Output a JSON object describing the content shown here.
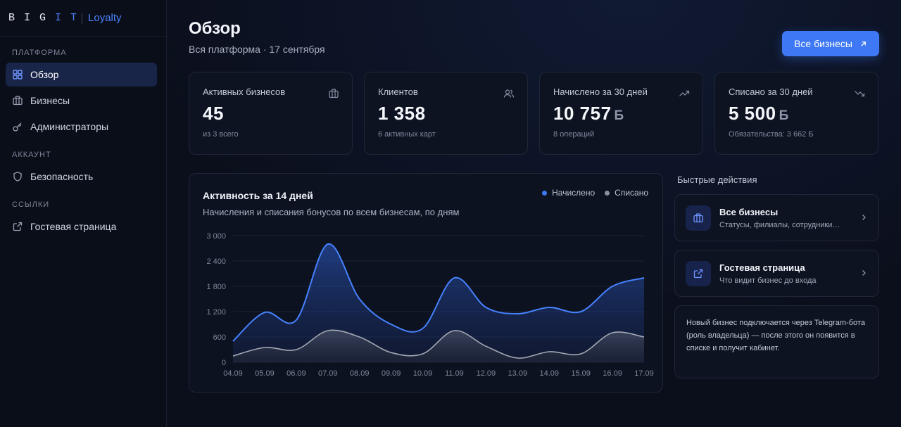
{
  "sidebar": {
    "logo": {
      "mark_left": "BIG",
      "mark_right": "IT",
      "product": "Loyalty"
    },
    "sections": [
      {
        "title": "ПЛАТФОРМА",
        "items": [
          {
            "label": "Обзор",
            "icon": "grid-icon",
            "active": true
          },
          {
            "label": "Бизнесы",
            "icon": "briefcase-icon",
            "active": false
          },
          {
            "label": "Администраторы",
            "icon": "key-icon",
            "active": false
          }
        ]
      },
      {
        "title": "АККАУНТ",
        "items": [
          {
            "label": "Безопасность",
            "icon": "shield-icon",
            "active": false
          }
        ]
      },
      {
        "title": "ССЫЛКИ",
        "items": [
          {
            "label": "Гостевая страница",
            "icon": "external-link-icon",
            "active": false
          }
        ]
      }
    ]
  },
  "header": {
    "title": "Обзор",
    "subtitle": "Вся платформа · 17 сентября",
    "button_label": "Все бизнесы"
  },
  "stats": [
    {
      "label": "Активных бизнесов",
      "value": "45",
      "unit": "",
      "note": "из 3 всего",
      "icon": "briefcase-icon"
    },
    {
      "label": "Клиентов",
      "value": "1 358",
      "unit": "",
      "note": "6 активных карт",
      "icon": "users-icon"
    },
    {
      "label": "Начислено за 30 дней",
      "value": "10 757",
      "unit": "Б",
      "note": "8 операций",
      "icon": "trend-up-icon"
    },
    {
      "label": "Списано за 30 дней",
      "value": "5 500",
      "unit": "Б",
      "note": "Обязательства: 3 662 Б",
      "icon": "trend-down-icon"
    }
  ],
  "chart_card": {
    "title": "Активность за 14 дней",
    "subtitle": "Начисления и списания бонусов по всем бизнесам, по дням"
  },
  "chart_data": {
    "type": "area",
    "x": [
      "04.09",
      "05.09",
      "06.09",
      "07.09",
      "08.09",
      "09.09",
      "10.09",
      "11.09",
      "12.09",
      "13.09",
      "14.09",
      "15.09",
      "16.09",
      "17.09"
    ],
    "series": [
      {
        "name": "Начислено",
        "color": "#3d78f5",
        "values": [
          500,
          1180,
          1000,
          2800,
          1500,
          900,
          800,
          2000,
          1300,
          1150,
          1300,
          1200,
          1800,
          2000
        ]
      },
      {
        "name": "Списано",
        "color": "#8a909c",
        "values": [
          150,
          350,
          300,
          750,
          600,
          230,
          200,
          750,
          380,
          100,
          250,
          200,
          700,
          600
        ]
      }
    ],
    "yticks": [
      0,
      600,
      1200,
      1800,
      2400,
      3000
    ],
    "ytick_labels": [
      "0",
      "600",
      "1 200",
      "1 800",
      "2 400",
      "3 000"
    ],
    "ylim": [
      0,
      3000
    ],
    "grid": true,
    "legend_position": "top-right"
  },
  "quick_actions": {
    "title": "Быстрые действия",
    "items": [
      {
        "name": "Все бизнесы",
        "desc": "Статусы, филиалы, сотрудники…",
        "icon": "briefcase-icon"
      },
      {
        "name": "Гостевая страница",
        "desc": "Что видит бизнес до входа",
        "icon": "external-link-icon"
      }
    ],
    "info": "Новый бизнес подключается через Telegram-бота (роль владельца) — после этого он появится в списке и получит кабинет."
  },
  "colors": {
    "accent": "#3e78f4",
    "background": "#0b0f1c",
    "card": "#0e1322"
  }
}
